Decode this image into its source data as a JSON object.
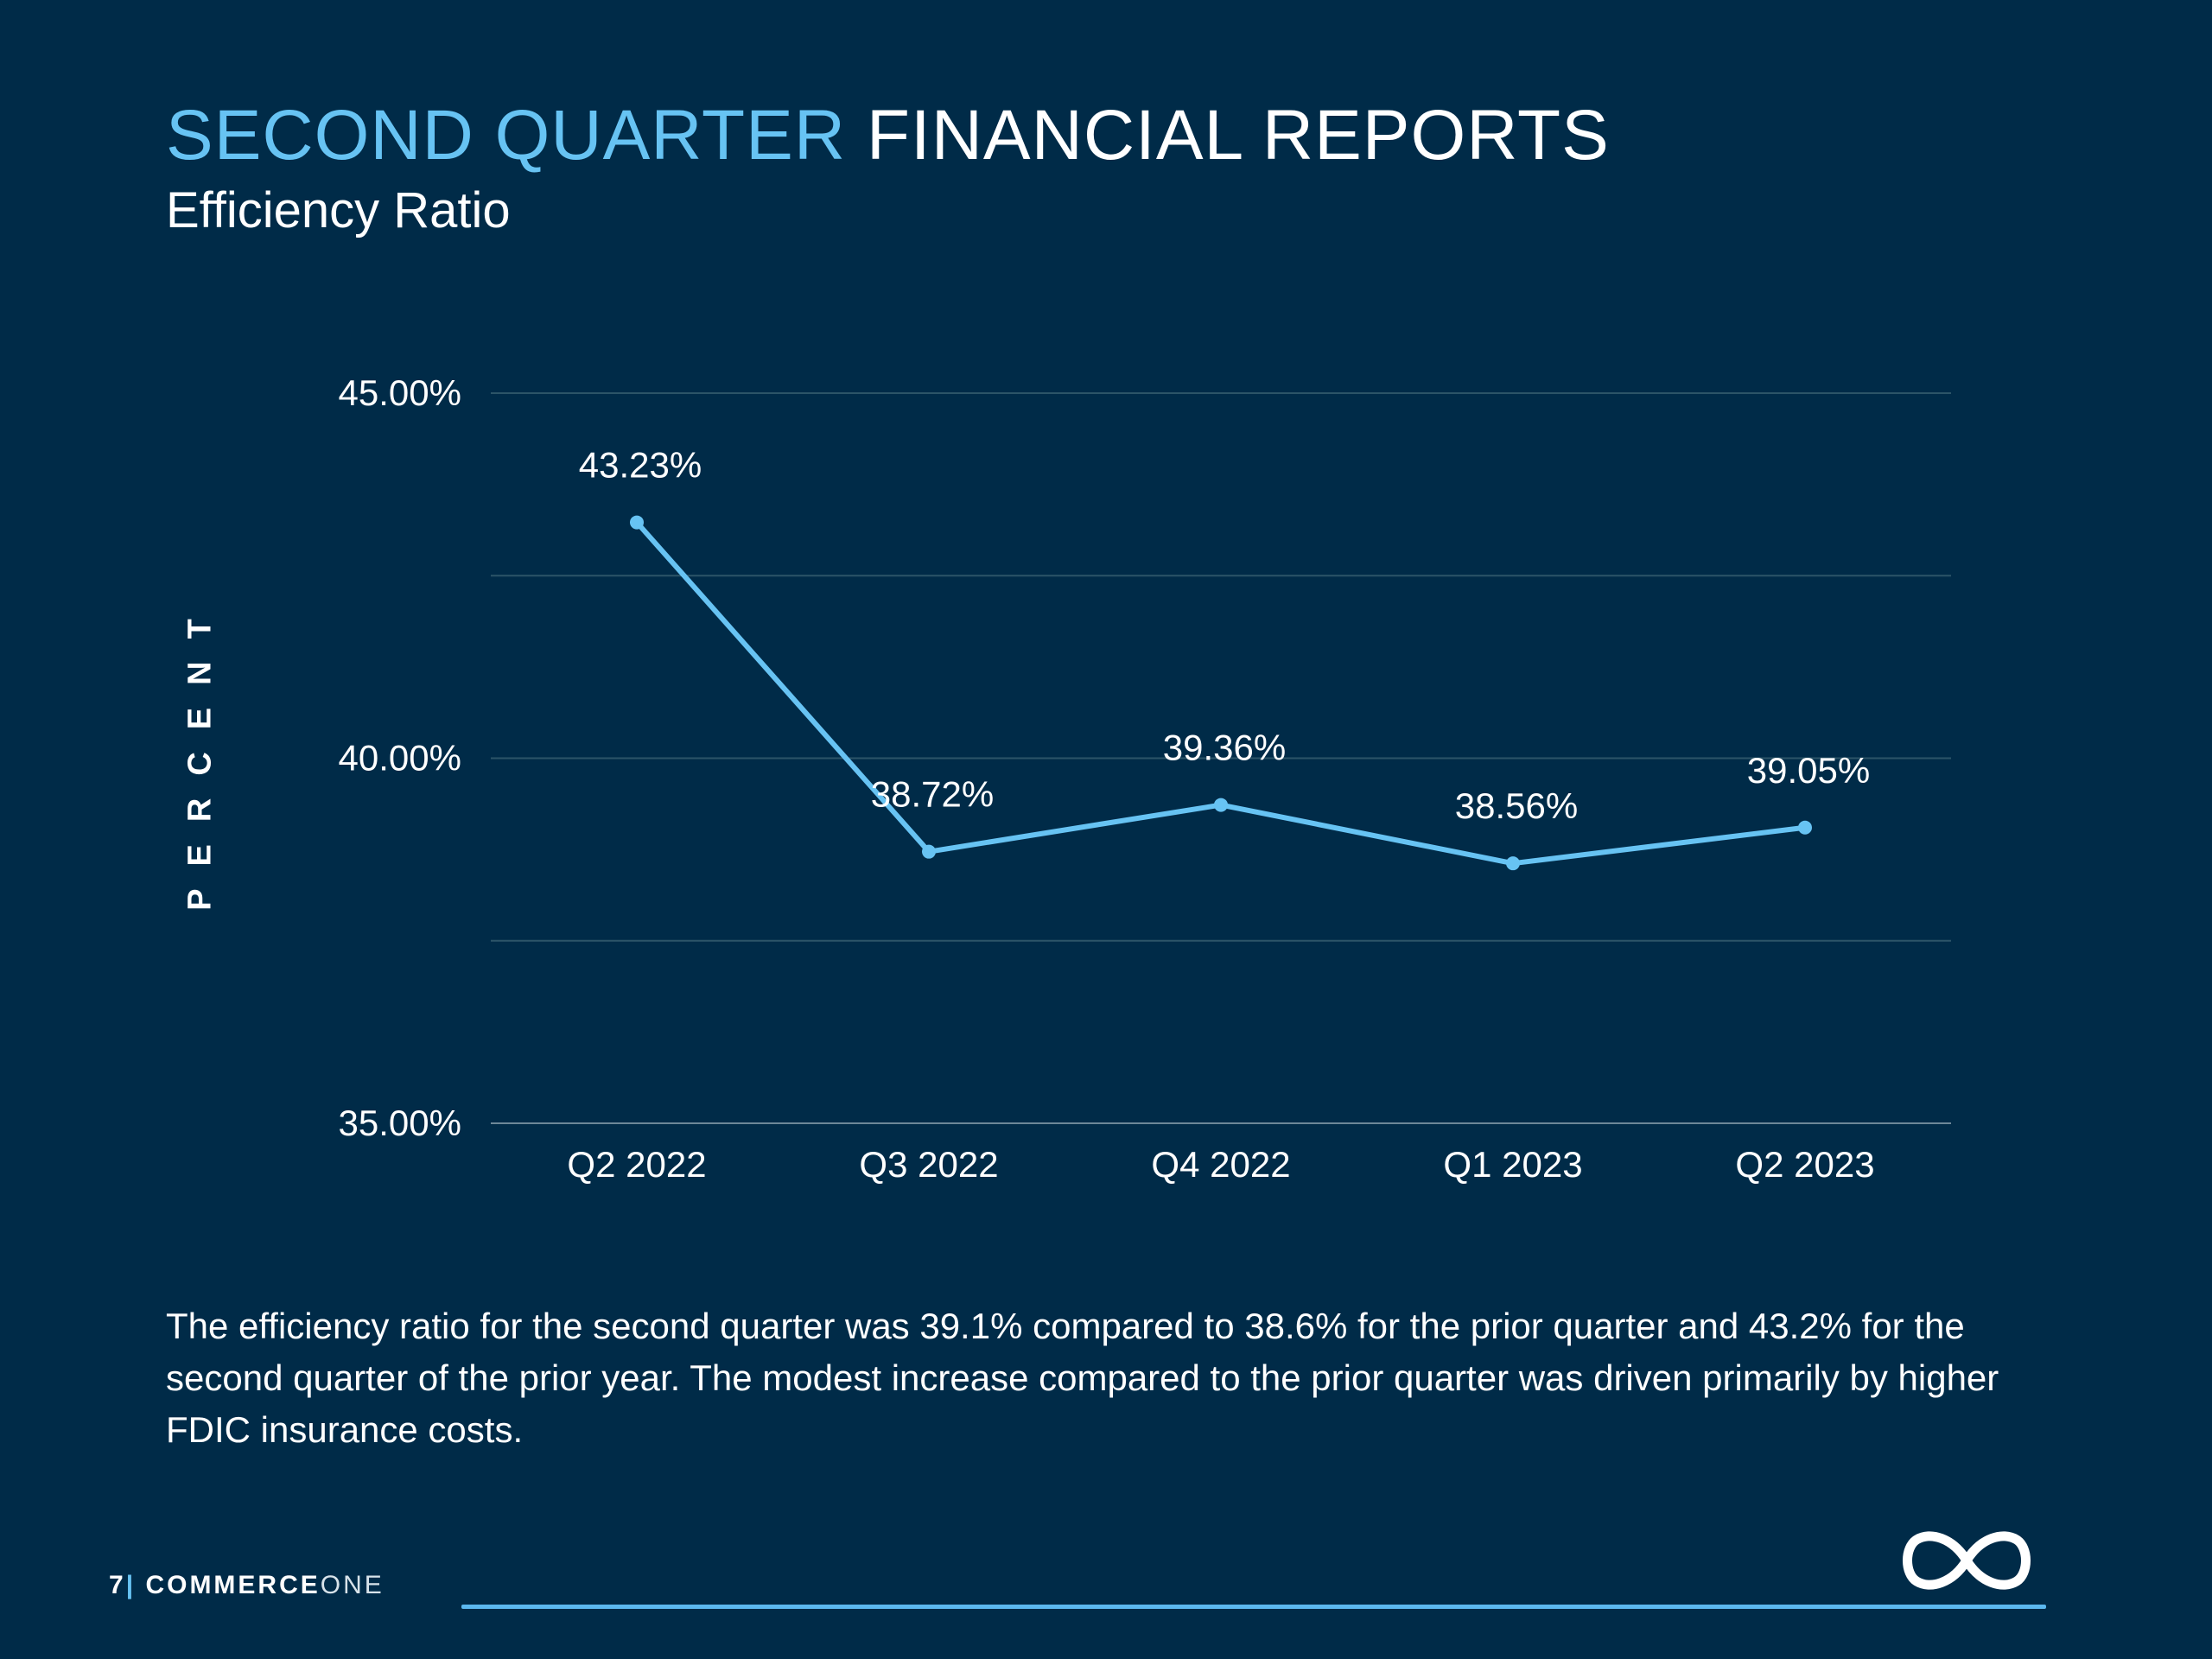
{
  "header": {
    "title_accent": "SECOND QUARTER",
    "title_rest": "FINANCIAL REPORTS",
    "subtitle": "Efficiency Ratio"
  },
  "chart_data": {
    "type": "line",
    "title": "Efficiency Ratio",
    "ylabel": "PERCENT",
    "xlabel": "",
    "categories": [
      "Q2 2022",
      "Q3 2022",
      "Q4 2022",
      "Q1 2023",
      "Q2 2023"
    ],
    "series": [
      {
        "values": [
          43.23,
          38.72,
          39.36,
          38.56,
          39.05
        ]
      }
    ],
    "data_labels": [
      "43.23%",
      "38.72%",
      "39.36%",
      "38.56%",
      "39.05%"
    ],
    "y_ticks": [
      45,
      40,
      35
    ],
    "y_tick_labels": [
      "45.00%",
      "40.00%",
      "35.00%"
    ],
    "ylim": [
      35,
      45
    ],
    "gridlines": [
      45,
      42.5,
      40,
      37.5
    ],
    "grid": true,
    "legend": "none",
    "line_color": "#67c3f3"
  },
  "body": {
    "paragraph": "The efficiency ratio for the second quarter was 39.1% compared to 38.6% for the prior quarter and 43.2% for the second quarter of the prior year. The modest increase compared to the prior quarter was driven primarily by higher FDIC insurance costs."
  },
  "footer": {
    "page_number": "7",
    "separator": "|",
    "brand_bold": "COMMERCE",
    "brand_light": "ONE",
    "logo_icon": "infinity-logo-icon"
  },
  "colors": {
    "background": "#002b48",
    "accent": "#67c3f3",
    "gridline": "#2c5468",
    "text": "#ffffff"
  }
}
